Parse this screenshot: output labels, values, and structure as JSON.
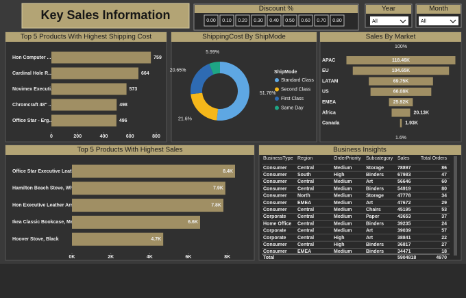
{
  "header": {
    "title": "Key Sales Information"
  },
  "slicers": {
    "discount": {
      "label": "Discount %",
      "options": [
        "0.00",
        "0.10",
        "0.20",
        "0.30",
        "0.40",
        "0.50",
        "0.60",
        "0.70",
        "0.80"
      ]
    },
    "year": {
      "label": "Year",
      "selected": "All"
    },
    "month": {
      "label": "Month",
      "selected": "All"
    }
  },
  "chart_data": [
    {
      "type": "hbar",
      "title": "Top 5 Products With Highest Shipping Cost",
      "categories": [
        "Hon Computer ...",
        "Cardinal Hole R...",
        "Novimex Executi...",
        "Chromcraft 48\" ...",
        "Office Star - Erg..."
      ],
      "values": [
        759,
        664,
        573,
        498,
        496
      ],
      "color": "#a08f64",
      "xlim": [
        0,
        800
      ],
      "xticks": [
        0,
        200,
        400,
        600,
        800
      ]
    },
    {
      "type": "donut",
      "title": "ShippingCost By ShipMode",
      "legend_title": "ShipMode",
      "series": [
        {
          "name": "Standard Class",
          "color": "#5ea7e3",
          "value": 51.76,
          "value_label": "51.76%"
        },
        {
          "name": "Second Class",
          "color": "#f5b71a",
          "value": 21.6,
          "value_label": "21.6%"
        },
        {
          "name": "First Class",
          "color": "#2e6bb3",
          "value": 20.65,
          "value_label": "20.65%"
        },
        {
          "name": "Same Day",
          "color": "#1ea585",
          "value": 5.99,
          "value_label": "5.99%"
        }
      ]
    },
    {
      "type": "funnel",
      "title": "Sales By Market",
      "categories": [
        "APAC",
        "EU",
        "LATAM",
        "US",
        "EMEA",
        "Africa",
        "Canada"
      ],
      "values": [
        118460,
        104650,
        69750,
        66080,
        25920,
        20130,
        1930
      ],
      "value_labels": [
        "118.46K",
        "104.65K",
        "69.75K",
        "66.08K",
        "25.92K",
        "20.13K",
        "1.93K"
      ],
      "annotations": [
        "100%",
        "1.6%"
      ],
      "color": "#a08f64"
    },
    {
      "type": "hbar",
      "title": "Top 5 Products With Highest Sales",
      "categories": [
        "Office Star Executive Leath...",
        "Hamilton Beach Stove, White",
        "Hon Executive Leather Arm...",
        "Ikea Classic Bookcase, Metal",
        "Hoover Stove, Black"
      ],
      "values": [
        8400,
        7900,
        7800,
        6600,
        4700
      ],
      "value_labels": [
        "8.4K",
        "7.9K",
        "7.8K",
        "6.6K",
        "4.7K"
      ],
      "color": "#a08f64",
      "xlim": [
        0,
        8400
      ],
      "xticks": [
        {
          "value": 0,
          "label": "0K"
        },
        {
          "value": 2000,
          "label": "2K"
        },
        {
          "value": 4000,
          "label": "4K"
        },
        {
          "value": 6000,
          "label": "6K"
        },
        {
          "value": 8000,
          "label": "8K"
        }
      ]
    }
  ],
  "table": {
    "title": "Business Insights",
    "columns": [
      "BusinessType",
      "Region",
      "OrderPriority",
      "Subcategory",
      "Sales",
      "Total Orders"
    ],
    "rows": [
      [
        "Consumer",
        "Central",
        "Medium",
        "Storage",
        78897,
        86
      ],
      [
        "Consumer",
        "South",
        "High",
        "Binders",
        67983,
        47
      ],
      [
        "Consumer",
        "Central",
        "Medium",
        "Art",
        56646,
        60
      ],
      [
        "Consumer",
        "Central",
        "Medium",
        "Binders",
        54919,
        80
      ],
      [
        "Consumer",
        "North",
        "Medium",
        "Storage",
        47778,
        34
      ],
      [
        "Consumer",
        "EMEA",
        "Medium",
        "Art",
        47672,
        29
      ],
      [
        "Consumer",
        "Central",
        "Medium",
        "Chairs",
        45195,
        53
      ],
      [
        "Corporate",
        "Central",
        "Medium",
        "Paper",
        43653,
        37
      ],
      [
        "Home Office",
        "Central",
        "Medium",
        "Binders",
        39235,
        24
      ],
      [
        "Corporate",
        "Central",
        "Medium",
        "Art",
        39039,
        57
      ],
      [
        "Corporate",
        "Central",
        "High",
        "Art",
        38841,
        22
      ],
      [
        "Consumer",
        "Central",
        "High",
        "Binders",
        36817,
        27
      ],
      [
        "Consumer",
        "EMEA",
        "Medium",
        "Binders",
        34471,
        18
      ]
    ],
    "total": {
      "label": "Total",
      "sales": 5904818,
      "orders": 4970
    }
  }
}
